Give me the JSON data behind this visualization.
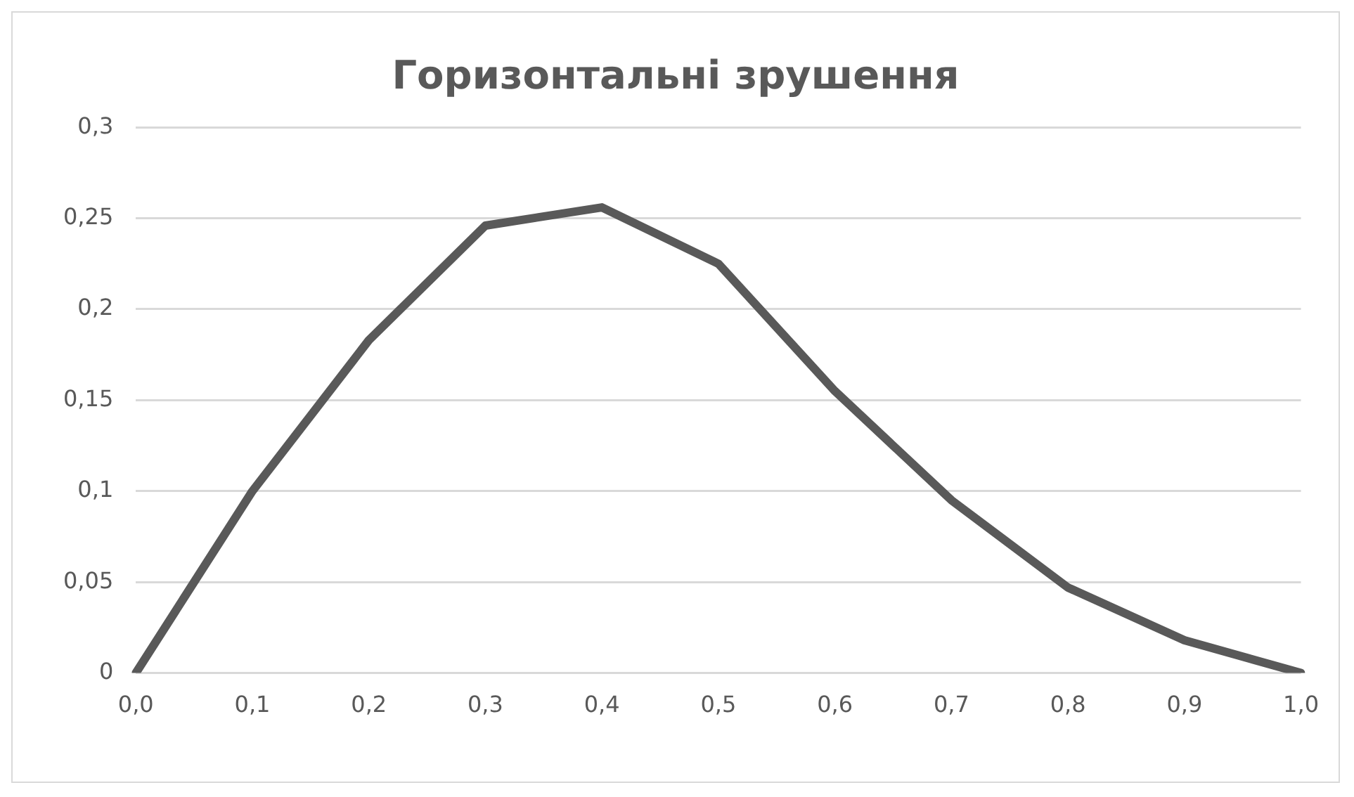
{
  "chart_data": {
    "type": "line",
    "title": "Горизонтальні зрушення",
    "categories": [
      "0,0",
      "0,1",
      "0,2",
      "0,3",
      "0,4",
      "0,5",
      "0,6",
      "0,7",
      "0,8",
      "0,9",
      "1,0"
    ],
    "series": [
      {
        "color": "#595959",
        "values": [
          0,
          0.1,
          0.183,
          0.246,
          0.256,
          0.225,
          0.155,
          0.095,
          0.047,
          0.018,
          0
        ]
      }
    ],
    "ylim": [
      0,
      0.3
    ],
    "yticks": [
      {
        "value": 0,
        "label": "0"
      },
      {
        "value": 0.05,
        "label": "0,05"
      },
      {
        "value": 0.1,
        "label": "0,1"
      },
      {
        "value": 0.15,
        "label": "0,15"
      },
      {
        "value": 0.2,
        "label": "0,2"
      },
      {
        "value": 0.25,
        "label": "0,25"
      },
      {
        "value": 0.3,
        "label": "0,3"
      }
    ],
    "grid": "y",
    "legend": false,
    "marker": "none",
    "line_style": "solid"
  }
}
